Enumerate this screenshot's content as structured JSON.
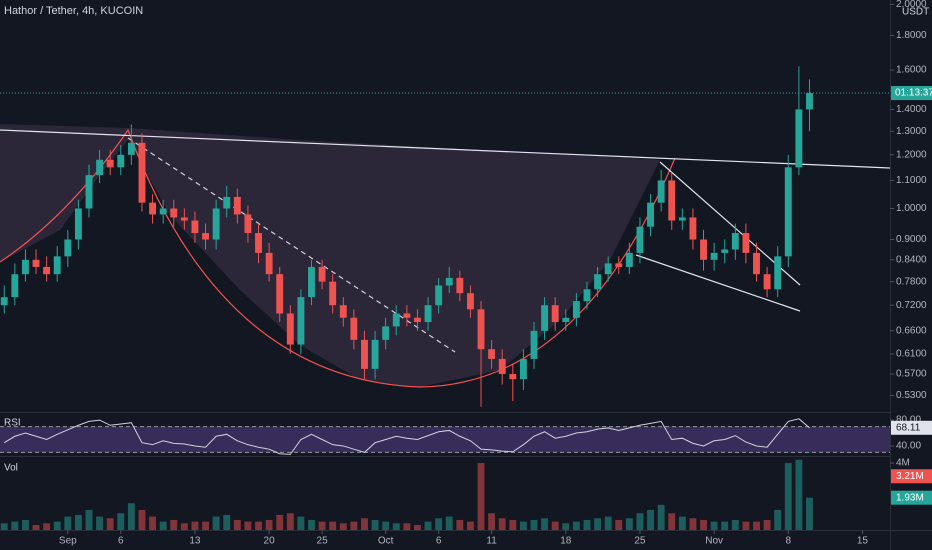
{
  "chart_data": {
    "type": "candlestick",
    "title": "Hathor / Tether, 4h, KUCOIN",
    "currency": "USDT",
    "countdown": "01:13:37",
    "log_scale": true,
    "up_color": "#26a69a",
    "down_color": "#ef5350",
    "xlim": [
      -0.4,
      83.6
    ],
    "xticks": [
      {
        "value": 6,
        "label": "Sep"
      },
      {
        "value": 11,
        "label": "6"
      },
      {
        "value": 18,
        "label": "13"
      },
      {
        "value": 25,
        "label": "20"
      },
      {
        "value": 30,
        "label": "25"
      },
      {
        "value": 36,
        "label": "Oct"
      },
      {
        "value": 41,
        "label": "6"
      },
      {
        "value": 46,
        "label": "11"
      },
      {
        "value": 53,
        "label": "18"
      },
      {
        "value": 60,
        "label": "25"
      },
      {
        "value": 67,
        "label": "Nov"
      },
      {
        "value": 74,
        "label": "8"
      },
      {
        "value": 81,
        "label": "15"
      }
    ],
    "ylim": [
      0.501,
      2.03
    ],
    "yticks": [
      {
        "value": 2,
        "label": "2.0000"
      },
      {
        "value": 1.8,
        "label": "1.8000"
      },
      {
        "value": 1.6,
        "label": "1.6000"
      },
      {
        "value": 1.4,
        "label": "1.4000"
      },
      {
        "value": 1.3,
        "label": "1.3000"
      },
      {
        "value": 1.2,
        "label": "1.2000"
      },
      {
        "value": 1.1,
        "label": "1.1000"
      },
      {
        "value": 1,
        "label": "1.0000"
      },
      {
        "value": 0.9,
        "label": "0.9000"
      },
      {
        "value": 0.84,
        "label": "0.8400"
      },
      {
        "value": 0.78,
        "label": "0.7800"
      },
      {
        "value": 0.72,
        "label": "0.7200"
      },
      {
        "value": 0.66,
        "label": "0.6600"
      },
      {
        "value": 0.61,
        "label": "0.6100"
      },
      {
        "value": 0.57,
        "label": "0.5700"
      },
      {
        "value": 0.53,
        "label": "0.5300"
      }
    ],
    "open": [
      0.72,
      0.74,
      0.8,
      0.84,
      0.82,
      0.8,
      0.85,
      0.9,
      1.0,
      1.12,
      1.18,
      1.15,
      1.2,
      1.25,
      1.02,
      0.98,
      1.0,
      0.97,
      0.96,
      0.92,
      0.9,
      1.0,
      1.04,
      0.98,
      0.92,
      0.86,
      0.8,
      0.7,
      0.63,
      0.74,
      0.82,
      0.78,
      0.72,
      0.69,
      0.64,
      0.58,
      0.64,
      0.67,
      0.7,
      0.69,
      0.68,
      0.72,
      0.77,
      0.79,
      0.75,
      0.71,
      0.62,
      0.6,
      0.57,
      0.56,
      0.6,
      0.66,
      0.72,
      0.68,
      0.69,
      0.73,
      0.76,
      0.8,
      0.83,
      0.82,
      0.86,
      0.94,
      1.02,
      1.1,
      0.96,
      0.97,
      0.9,
      0.84,
      0.86,
      0.87,
      0.92,
      0.86,
      0.8,
      0.76,
      0.85,
      1.15,
      1.4
    ],
    "high": [
      0.77,
      0.83,
      0.87,
      0.87,
      0.85,
      0.88,
      0.93,
      1.03,
      1.16,
      1.22,
      1.22,
      1.24,
      1.33,
      1.29,
      1.05,
      1.03,
      1.03,
      1.0,
      0.99,
      0.95,
      1.03,
      1.08,
      1.07,
      1.01,
      0.95,
      0.89,
      0.82,
      0.72,
      0.76,
      0.84,
      0.84,
      0.8,
      0.74,
      0.71,
      0.66,
      0.66,
      0.69,
      0.72,
      0.72,
      0.71,
      0.74,
      0.79,
      0.82,
      0.81,
      0.77,
      0.73,
      0.64,
      0.62,
      0.59,
      0.62,
      0.68,
      0.74,
      0.74,
      0.71,
      0.75,
      0.78,
      0.82,
      0.85,
      0.85,
      0.89,
      0.97,
      1.05,
      1.14,
      1.13,
      1.0,
      1.0,
      0.93,
      0.89,
      0.9,
      0.95,
      0.95,
      0.89,
      0.82,
      0.88,
      1.2,
      1.62,
      1.55
    ],
    "low": [
      0.7,
      0.72,
      0.78,
      0.8,
      0.78,
      0.78,
      0.82,
      0.87,
      0.97,
      1.09,
      1.12,
      1.12,
      1.16,
      0.99,
      0.95,
      0.95,
      0.94,
      0.93,
      0.89,
      0.87,
      0.87,
      0.97,
      0.95,
      0.89,
      0.83,
      0.78,
      0.68,
      0.61,
      0.61,
      0.72,
      0.76,
      0.7,
      0.67,
      0.62,
      0.56,
      0.56,
      0.62,
      0.65,
      0.67,
      0.66,
      0.66,
      0.7,
      0.75,
      0.73,
      0.69,
      0.51,
      0.58,
      0.55,
      0.52,
      0.54,
      0.58,
      0.64,
      0.66,
      0.66,
      0.67,
      0.71,
      0.74,
      0.78,
      0.8,
      0.8,
      0.83,
      0.91,
      0.99,
      0.93,
      0.93,
      0.87,
      0.81,
      0.81,
      0.83,
      0.84,
      0.83,
      0.78,
      0.74,
      0.74,
      0.82,
      1.12,
      1.3
    ],
    "close": [
      0.74,
      0.8,
      0.84,
      0.82,
      0.8,
      0.85,
      0.9,
      1.0,
      1.12,
      1.18,
      1.15,
      1.2,
      1.25,
      1.02,
      0.98,
      1.0,
      0.97,
      0.96,
      0.92,
      0.9,
      1.0,
      1.04,
      0.98,
      0.92,
      0.86,
      0.8,
      0.7,
      0.63,
      0.74,
      0.82,
      0.78,
      0.72,
      0.69,
      0.64,
      0.58,
      0.64,
      0.67,
      0.7,
      0.69,
      0.68,
      0.72,
      0.77,
      0.79,
      0.75,
      0.71,
      0.62,
      0.6,
      0.57,
      0.56,
      0.6,
      0.66,
      0.72,
      0.68,
      0.69,
      0.73,
      0.76,
      0.8,
      0.83,
      0.82,
      0.86,
      0.94,
      1.02,
      1.1,
      0.96,
      0.97,
      0.9,
      0.84,
      0.86,
      0.87,
      0.92,
      0.86,
      0.8,
      0.76,
      0.85,
      1.15,
      1.4,
      1.48
    ],
    "rsi": {
      "label": "RSI",
      "color": "#d1d4dc",
      "band": [
        70,
        30
      ],
      "ylim": [
        26,
        91
      ],
      "yticks": [
        {
          "value": 80,
          "label": "80.00"
        },
        {
          "value": 40,
          "label": "40.00"
        }
      ],
      "values": [
        45,
        55,
        60,
        55,
        50,
        58,
        65,
        72,
        78,
        80,
        72,
        74,
        76,
        45,
        42,
        48,
        44,
        43,
        40,
        38,
        55,
        58,
        48,
        42,
        38,
        35,
        28,
        27,
        50,
        58,
        50,
        42,
        40,
        35,
        30,
        45,
        50,
        55,
        52,
        50,
        56,
        62,
        64,
        55,
        48,
        35,
        34,
        32,
        31,
        42,
        55,
        62,
        52,
        55,
        60,
        62,
        66,
        68,
        64,
        68,
        72,
        75,
        78,
        50,
        52,
        44,
        40,
        48,
        50,
        56,
        46,
        40,
        38,
        58,
        78,
        82,
        68.11
      ]
    },
    "volume": {
      "label": "Vol",
      "ylim": [
        0,
        4.3
      ],
      "yticks": [
        {
          "value": 4,
          "label": "4M"
        }
      ],
      "ma_label": {
        "value": 3.21,
        "label": "3.21M"
      },
      "last_label": "1.93M",
      "values": [
        0.4,
        0.5,
        0.6,
        0.3,
        0.4,
        0.5,
        0.8,
        0.9,
        1.2,
        0.8,
        0.7,
        1.0,
        1.6,
        1.2,
        0.8,
        0.5,
        0.6,
        0.4,
        0.5,
        0.5,
        0.8,
        0.9,
        0.6,
        0.5,
        0.5,
        0.6,
        0.9,
        1.0,
        0.8,
        0.6,
        0.5,
        0.5,
        0.4,
        0.5,
        0.7,
        0.6,
        0.5,
        0.4,
        0.4,
        0.3,
        0.5,
        0.7,
        0.8,
        0.6,
        0.5,
        4.0,
        1.0,
        0.7,
        0.6,
        0.5,
        0.6,
        0.7,
        0.5,
        0.4,
        0.5,
        0.6,
        0.7,
        0.8,
        0.6,
        0.7,
        1.0,
        1.2,
        1.5,
        1.0,
        0.8,
        0.7,
        0.6,
        0.5,
        0.5,
        0.6,
        0.5,
        0.5,
        0.6,
        1.2,
        4.0,
        4.2,
        1.93
      ]
    }
  }
}
